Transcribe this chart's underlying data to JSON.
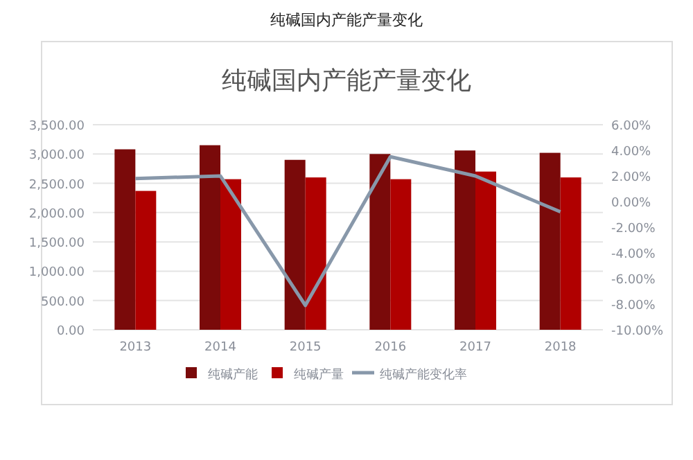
{
  "chart_data": {
    "type": "bar",
    "title": "纯碱国内产能产量变化",
    "subtitle": "纯碱国内产能产量变化",
    "categories": [
      "2013",
      "2014",
      "2015",
      "2016",
      "2017",
      "2018"
    ],
    "series": [
      {
        "name": "纯碱产能",
        "color": "#7a0a0a",
        "values": [
          3080,
          3150,
          2900,
          3000,
          3060,
          3020
        ]
      },
      {
        "name": "纯碱产量",
        "color": "#b00000",
        "values": [
          2370,
          2570,
          2600,
          2570,
          2700,
          2600
        ]
      },
      {
        "name": "纯碱产能变化率",
        "type": "line",
        "axis": "y2",
        "color": "#8898aa",
        "values": [
          1.8,
          2.0,
          -8.1,
          3.5,
          2.0,
          -0.8
        ]
      }
    ],
    "ylim": [
      0,
      3500
    ],
    "yticks": [
      {
        "value": 0,
        "label": "0.00"
      },
      {
        "value": 500,
        "label": "500.00"
      },
      {
        "value": 1000,
        "label": "1,000.00"
      },
      {
        "value": 1500,
        "label": "1,500.00"
      },
      {
        "value": 2000,
        "label": "2,000.00"
      },
      {
        "value": 2500,
        "label": "2,500.00"
      },
      {
        "value": 3000,
        "label": "3,000.00"
      },
      {
        "value": 3500,
        "label": "3,500.00"
      }
    ],
    "y2lim": [
      -10,
      6
    ],
    "y2ticks": [
      {
        "value": -10,
        "label": "-10.00%"
      },
      {
        "value": -8,
        "label": "-8.00%"
      },
      {
        "value": -6,
        "label": "-6.00%"
      },
      {
        "value": -4,
        "label": "-4.00%"
      },
      {
        "value": -2,
        "label": "-2.00%"
      },
      {
        "value": 0,
        "label": "0.00%"
      },
      {
        "value": 2,
        "label": "2.00%"
      },
      {
        "value": 4,
        "label": "4.00%"
      },
      {
        "value": 6,
        "label": "6.00%"
      }
    ],
    "grid": "y",
    "legend": "bottom"
  }
}
